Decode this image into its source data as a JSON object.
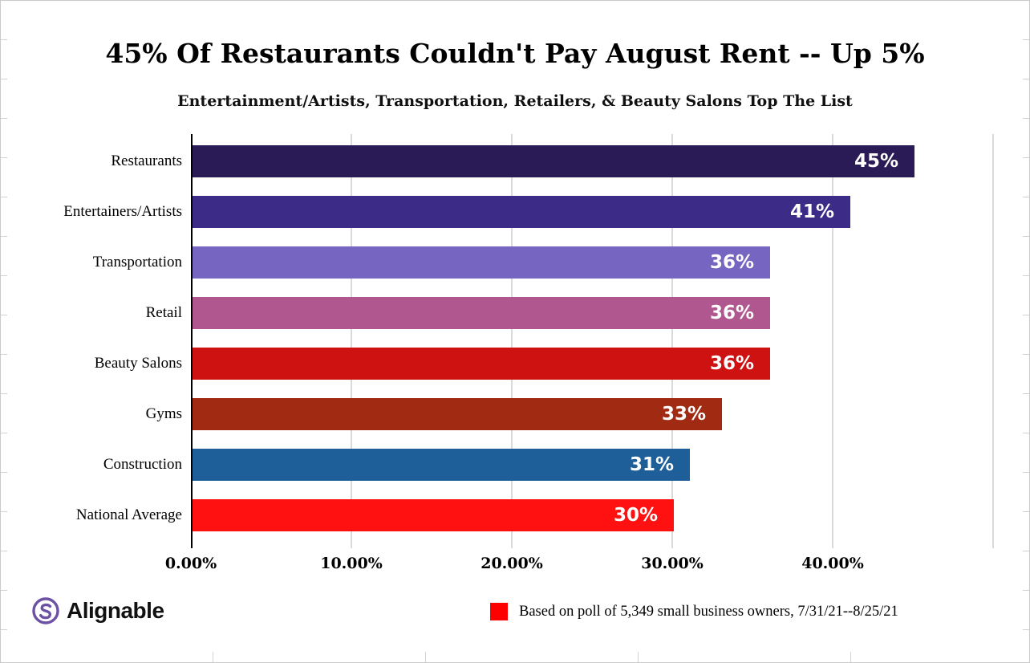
{
  "chart": {
    "title": "45% Of Restaurants Couldn't Pay August Rent -- Up 5%",
    "subtitle": "Entertainment/Artists, Transportation, Retailers, & Beauty Salons Top The List"
  },
  "chart_data": {
    "type": "bar",
    "orientation": "horizontal",
    "title": "45% Of Restaurants Couldn't Pay August Rent -- Up 5%",
    "subtitle": "Entertainment/Artists, Transportation, Retailers, & Beauty Salons Top The List",
    "categories": [
      "Restaurants",
      "Entertainers/Artists",
      "Transportation",
      "Retail",
      "Beauty Salons",
      "Gyms",
      "Construction",
      "National Average"
    ],
    "values": [
      45,
      41,
      36,
      36,
      36,
      33,
      31,
      30
    ],
    "value_labels": [
      "45%",
      "41%",
      "36%",
      "36%",
      "36%",
      "33%",
      "31%",
      "30%"
    ],
    "bar_colors": [
      "#2A1A55",
      "#3D2B88",
      "#7766C1",
      "#B1578F",
      "#CE1111",
      "#A02A12",
      "#1E5F99",
      "#FF1111"
    ],
    "xlabel": "",
    "ylabel": "",
    "x_ticks": [
      "0.00%",
      "10.00%",
      "20.00%",
      "30.00%",
      "40.00%"
    ],
    "x_tick_values": [
      0,
      10,
      20,
      30,
      40
    ],
    "xlim": [
      0,
      50
    ],
    "grid": "vertical",
    "gridline_percents": [
      10,
      20,
      30,
      40,
      50
    ],
    "gridline_color": "#dadada",
    "legend_position": "bottom-right"
  },
  "footer": {
    "brand": "Alignable",
    "legend_label": "Based on poll of 5,349 small business owners, 7/31/21--8/25/21",
    "legend_color": "#FF0000",
    "brand_color": "#6C51A4"
  }
}
